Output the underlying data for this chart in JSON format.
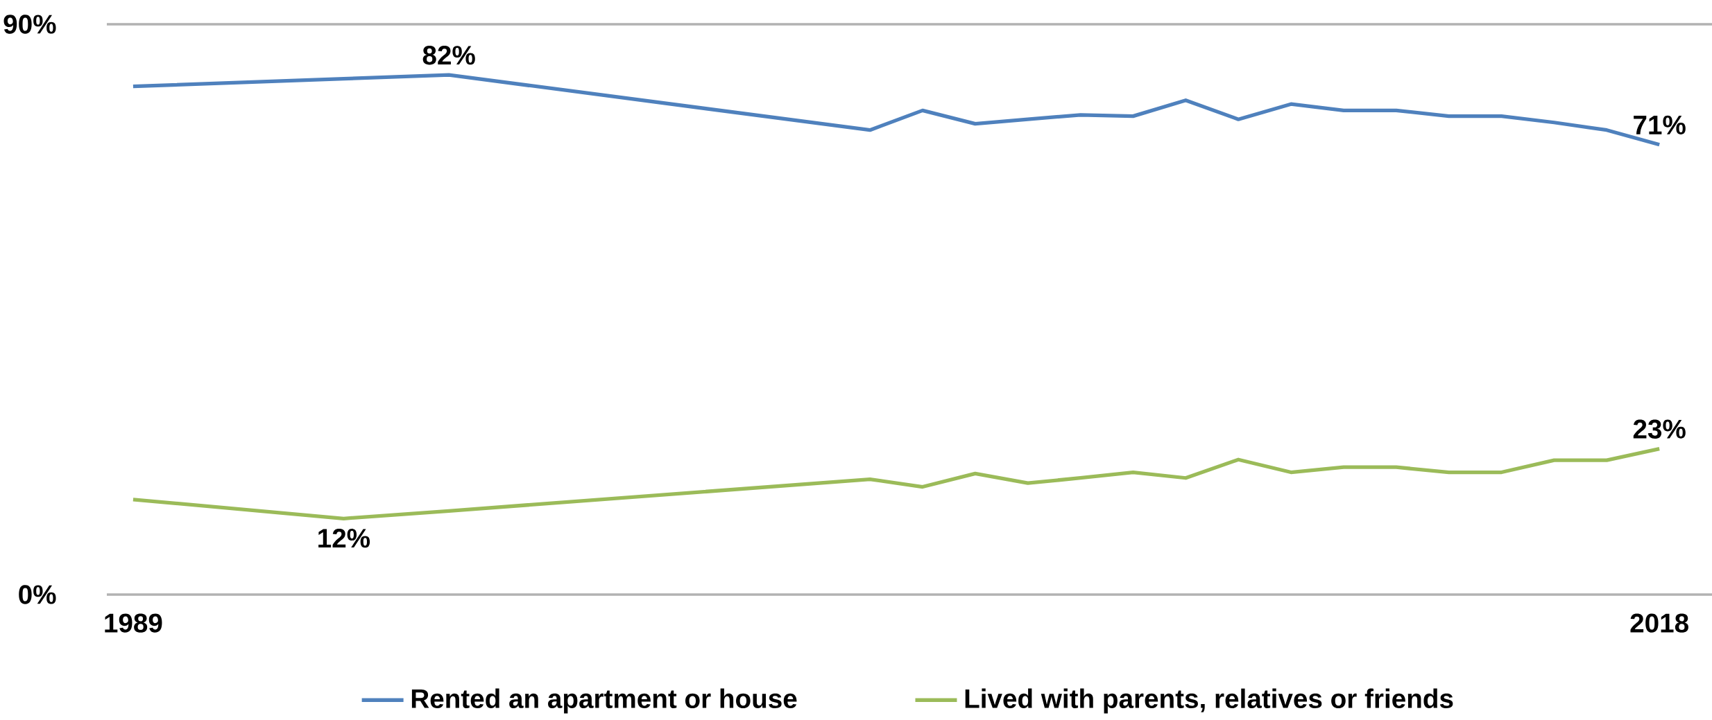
{
  "chart_data": {
    "type": "line",
    "x": [
      1989,
      1993,
      1995,
      2003,
      2004,
      2005,
      2006,
      2007,
      2008,
      2009,
      2010,
      2011,
      2012,
      2013,
      2014,
      2015,
      2016,
      2017,
      2018
    ],
    "series": [
      {
        "name": "Rented an apartment or house",
        "color": "#4f81bd",
        "values": [
          80.2,
          81.4,
          82,
          73.3,
          76.4,
          74.3,
          75,
          75.7,
          75.5,
          78,
          75,
          77.4,
          76.4,
          76.4,
          75.5,
          75.5,
          74.5,
          73.3,
          71
        ],
        "value_labels": [
          null,
          null,
          "82%",
          null,
          null,
          null,
          null,
          null,
          null,
          null,
          null,
          null,
          null,
          null,
          null,
          null,
          null,
          null,
          "71%"
        ]
      },
      {
        "name": "Lived with parents, relatives or friends",
        "color": "#9bbb59",
        "values": [
          15,
          12,
          13.2,
          18.2,
          17,
          19.1,
          17.6,
          18.4,
          19.3,
          18.4,
          21.3,
          19.3,
          20.1,
          20.1,
          19.3,
          19.3,
          21.2,
          21.2,
          23
        ],
        "value_labels": [
          null,
          "12%",
          null,
          null,
          null,
          null,
          null,
          null,
          null,
          null,
          null,
          null,
          null,
          null,
          null,
          null,
          null,
          null,
          "23%"
        ]
      }
    ],
    "xlim": [
      1988.5,
      2019
    ],
    "xticks": [
      1989,
      2018
    ],
    "ylim": [
      0,
      90
    ],
    "yticks": [
      {
        "value": 0,
        "label": "0%"
      },
      {
        "value": 90,
        "label": "90%"
      }
    ],
    "legend": "bottom"
  }
}
